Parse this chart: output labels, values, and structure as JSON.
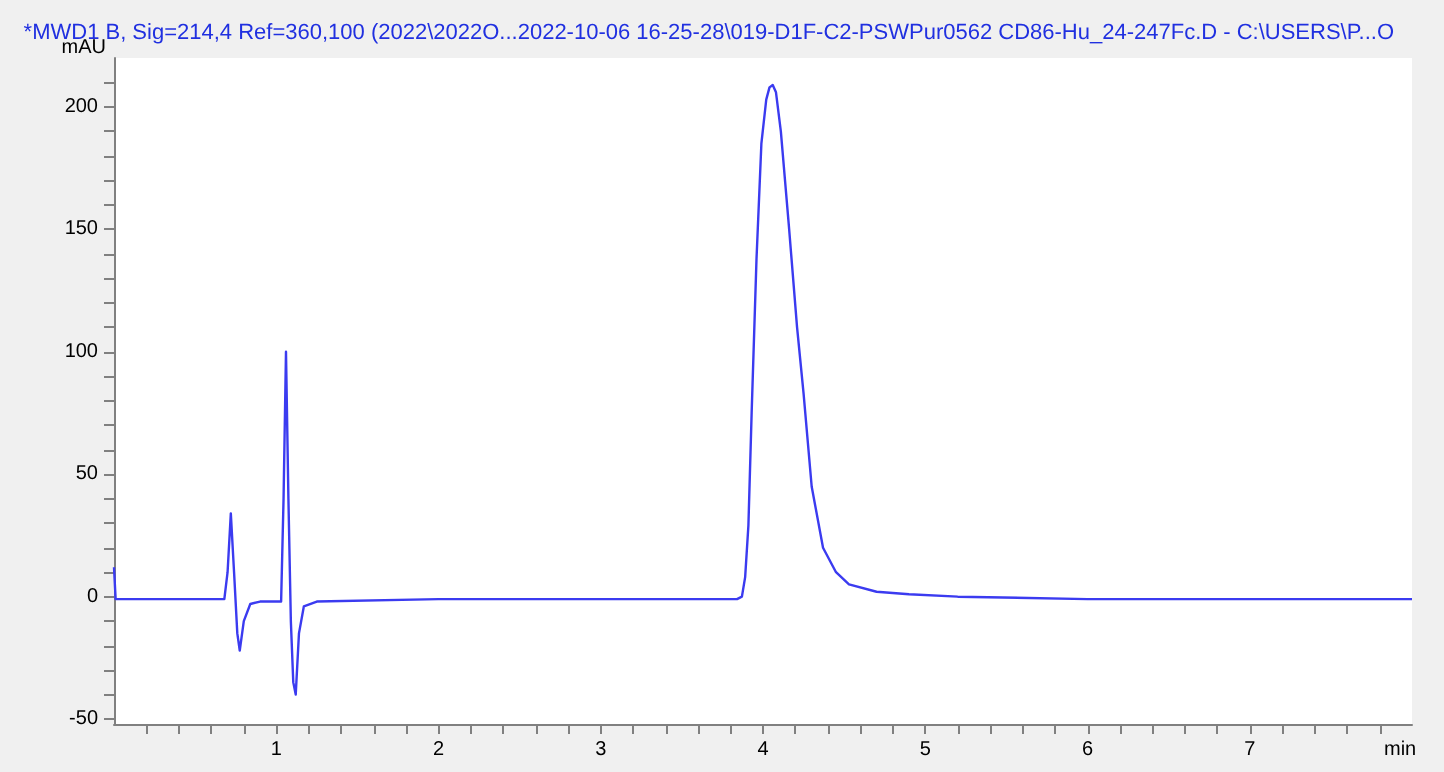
{
  "chart_data": {
    "type": "line",
    "title": "*MWD1 B, Sig=214,4 Ref=360,100 (2022\\2022O...2022-10-06 16-25-28\\019-D1F-C2-PSWPur0562 CD86-Hu_24-247Fc.D - C:\\USERS\\P...O",
    "xlabel": "min",
    "ylabel": "mAU",
    "series": [
      {
        "color": "#3b3bf0",
        "x": [
          0,
          0.01,
          0.3,
          0.68,
          0.7,
          0.72,
          0.74,
          0.76,
          0.775,
          0.8,
          0.84,
          0.9,
          1.03,
          1.045,
          1.06,
          1.075,
          1.09,
          1.105,
          1.12,
          1.14,
          1.17,
          1.25,
          2,
          3,
          3.84,
          3.87,
          3.89,
          3.91,
          3.93,
          3.96,
          3.99,
          4.02,
          4.04,
          4.06,
          4.08,
          4.11,
          4.16,
          4.21,
          4.25,
          4.3,
          4.37,
          4.45,
          4.53,
          4.7,
          4.9,
          5.2,
          6,
          7,
          8
        ],
        "values": [
          12,
          -1,
          -1,
          -1,
          10,
          34,
          10,
          -15,
          -22,
          -10,
          -3,
          -2,
          -2,
          40,
          100,
          40,
          -10,
          -35,
          -40,
          -15,
          -4,
          -2,
          -1,
          -1,
          -1,
          0,
          8,
          29,
          75,
          138,
          185,
          203,
          208,
          209,
          206,
          190,
          151,
          110,
          83,
          45,
          20,
          10,
          5,
          2,
          1,
          0,
          -1,
          -1,
          -1
        ]
      }
    ],
    "xlim": [
      0,
      8
    ],
    "xticks": [
      {
        "value": 0.2,
        "label": null
      },
      {
        "value": 0.4,
        "label": null
      },
      {
        "value": 0.6,
        "label": null
      },
      {
        "value": 0.8,
        "label": null
      },
      1,
      {
        "value": 1.2,
        "label": null
      },
      {
        "value": 1.4,
        "label": null
      },
      {
        "value": 1.6,
        "label": null
      },
      {
        "value": 1.8,
        "label": null
      },
      2,
      {
        "value": 2.2,
        "label": null
      },
      {
        "value": 2.4,
        "label": null
      },
      {
        "value": 2.6,
        "label": null
      },
      {
        "value": 2.8,
        "label": null
      },
      3,
      {
        "value": 3.2,
        "label": null
      },
      {
        "value": 3.4,
        "label": null
      },
      {
        "value": 3.6,
        "label": null
      },
      {
        "value": 3.8,
        "label": null
      },
      4,
      {
        "value": 4.2,
        "label": null
      },
      {
        "value": 4.4,
        "label": null
      },
      {
        "value": 4.6,
        "label": null
      },
      {
        "value": 4.8,
        "label": null
      },
      5,
      {
        "value": 5.2,
        "label": null
      },
      {
        "value": 5.4,
        "label": null
      },
      {
        "value": 5.6,
        "label": null
      },
      {
        "value": 5.8,
        "label": null
      },
      6,
      {
        "value": 6.2,
        "label": null
      },
      {
        "value": 6.4,
        "label": null
      },
      {
        "value": 6.6,
        "label": null
      },
      {
        "value": 6.8,
        "label": null
      },
      7,
      {
        "value": 7.2,
        "label": null
      },
      {
        "value": 7.4,
        "label": null
      },
      {
        "value": 7.6,
        "label": null
      },
      {
        "value": 7.8,
        "label": null
      }
    ],
    "ylim": [
      -52,
      220
    ],
    "yticks": [
      -50,
      {
        "value": -40,
        "label": null
      },
      {
        "value": -30,
        "label": null
      },
      {
        "value": -20,
        "label": null
      },
      {
        "value": -10,
        "label": null
      },
      0,
      {
        "value": 10,
        "label": null
      },
      {
        "value": 20,
        "label": null
      },
      {
        "value": 30,
        "label": null
      },
      {
        "value": 40,
        "label": null
      },
      50,
      {
        "value": 60,
        "label": null
      },
      {
        "value": 70,
        "label": null
      },
      {
        "value": 80,
        "label": null
      },
      {
        "value": 90,
        "label": null
      },
      100,
      {
        "value": 110,
        "label": null
      },
      {
        "value": 120,
        "label": null
      },
      {
        "value": 130,
        "label": null
      },
      {
        "value": 140,
        "label": null
      },
      150,
      {
        "value": 160,
        "label": null
      },
      {
        "value": 170,
        "label": null
      },
      {
        "value": 180,
        "label": null
      },
      {
        "value": 190,
        "label": null
      },
      200,
      {
        "value": 210,
        "label": null
      }
    ],
    "grid": false,
    "marker": "none",
    "line_style": "solid"
  }
}
